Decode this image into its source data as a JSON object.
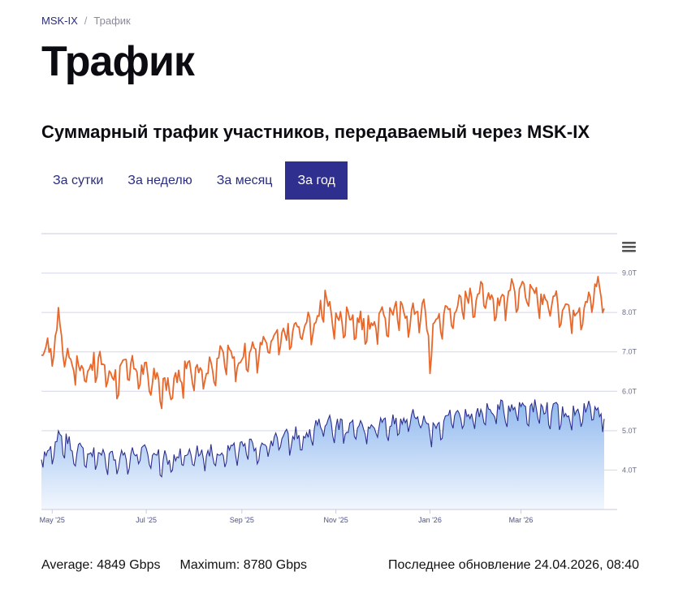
{
  "breadcrumb": {
    "home": "MSK-IX",
    "separator": "/",
    "current": "Трафик"
  },
  "page_title": "Трафик",
  "section_title": "Суммарный трафик участников, передаваемый через MSK-IX",
  "tabs": [
    {
      "label": "За сутки",
      "active": false
    },
    {
      "label": "За неделю",
      "active": false
    },
    {
      "label": "За месяц",
      "active": false
    },
    {
      "label": "За год",
      "active": true
    }
  ],
  "menu_icon": "hamburger-menu-icon",
  "stats": {
    "average": "Average: 4849 Gbps",
    "maximum": "Maximum: 8780 Gbps",
    "updated": "Последнее обновление 24.04.2026, 08:40"
  },
  "colors": {
    "accent": "#2e2f8e",
    "max_line": "#e8672a",
    "avg_line": "#2e2f8e",
    "area_top": "#8fb8ee",
    "area_bottom": "#eef4fd"
  },
  "chart_data": {
    "type": "line",
    "x_range": [
      "2025-04-24",
      "2026-04-24"
    ],
    "x_ticks": [
      {
        "date": "2025-05-01",
        "label": "May '25"
      },
      {
        "date": "2025-07-01",
        "label": "Jul '25"
      },
      {
        "date": "2025-09-01",
        "label": "Sep '25"
      },
      {
        "date": "2025-11-01",
        "label": "Nov '25"
      },
      {
        "date": "2026-01-01",
        "label": "Jan '26"
      },
      {
        "date": "2026-03-01",
        "label": "Mar '26"
      }
    ],
    "y_ticks": [
      {
        "value": 4,
        "label": "4.0T"
      },
      {
        "value": 5,
        "label": "5.0T"
      },
      {
        "value": 6,
        "label": "6.0T"
      },
      {
        "value": 7,
        "label": "7.0T"
      },
      {
        "value": 8,
        "label": "8.0T"
      },
      {
        "value": 9,
        "label": "9.0T"
      }
    ],
    "ylim": [
      3,
      10
    ],
    "grid": true,
    "series": [
      {
        "style": "line",
        "color": "#e8672a",
        "points": [
          [
            "2025-04-24",
            7.1
          ],
          [
            "2025-05-01",
            7.0
          ],
          [
            "2025-05-05",
            7.8
          ],
          [
            "2025-05-10",
            6.9
          ],
          [
            "2025-05-20",
            6.5
          ],
          [
            "2025-06-01",
            6.7
          ],
          [
            "2025-06-10",
            6.3
          ],
          [
            "2025-06-20",
            6.6
          ],
          [
            "2025-07-01",
            6.4
          ],
          [
            "2025-07-08",
            6.2
          ],
          [
            "2025-07-15",
            6.0
          ],
          [
            "2025-07-25",
            6.4
          ],
          [
            "2025-08-01",
            6.6
          ],
          [
            "2025-08-10",
            6.5
          ],
          [
            "2025-08-20",
            6.9
          ],
          [
            "2025-08-30",
            6.8
          ],
          [
            "2025-09-10",
            7.0
          ],
          [
            "2025-09-20",
            7.2
          ],
          [
            "2025-10-01",
            7.4
          ],
          [
            "2025-10-10",
            7.6
          ],
          [
            "2025-10-20",
            7.8
          ],
          [
            "2025-10-26",
            8.3
          ],
          [
            "2025-11-01",
            7.7
          ],
          [
            "2025-11-10",
            7.9
          ],
          [
            "2025-11-20",
            7.6
          ],
          [
            "2025-12-01",
            7.8
          ],
          [
            "2025-12-10",
            8.0
          ],
          [
            "2025-12-20",
            7.9
          ],
          [
            "2025-12-28",
            8.1
          ],
          [
            "2026-01-01",
            7.0
          ],
          [
            "2026-01-05",
            7.8
          ],
          [
            "2026-01-15",
            8.0
          ],
          [
            "2026-01-25",
            8.3
          ],
          [
            "2026-02-05",
            8.5
          ],
          [
            "2026-02-15",
            8.2
          ],
          [
            "2026-02-25",
            8.6
          ],
          [
            "2026-03-05",
            8.4
          ],
          [
            "2026-03-15",
            8.3
          ],
          [
            "2026-03-25",
            8.2
          ],
          [
            "2026-04-05",
            8.0
          ],
          [
            "2026-04-15",
            8.3
          ],
          [
            "2026-04-20",
            8.7
          ],
          [
            "2026-04-24",
            8.1
          ]
        ]
      },
      {
        "style": "area",
        "color": "#2e2f8e",
        "points": [
          [
            "2025-04-24",
            4.4
          ],
          [
            "2025-05-01",
            4.4
          ],
          [
            "2025-05-05",
            4.9
          ],
          [
            "2025-05-15",
            4.5
          ],
          [
            "2025-06-01",
            4.3
          ],
          [
            "2025-06-15",
            4.3
          ],
          [
            "2025-07-01",
            4.4
          ],
          [
            "2025-07-15",
            4.2
          ],
          [
            "2025-08-01",
            4.4
          ],
          [
            "2025-08-15",
            4.4
          ],
          [
            "2025-09-01",
            4.5
          ],
          [
            "2025-09-15",
            4.6
          ],
          [
            "2025-10-01",
            4.8
          ],
          [
            "2025-10-15",
            4.9
          ],
          [
            "2025-10-26",
            5.2
          ],
          [
            "2025-11-10",
            5.0
          ],
          [
            "2025-11-25",
            5.1
          ],
          [
            "2025-12-10",
            5.2
          ],
          [
            "2025-12-25",
            5.3
          ],
          [
            "2026-01-01",
            5.0
          ],
          [
            "2026-01-15",
            5.3
          ],
          [
            "2026-02-01",
            5.4
          ],
          [
            "2026-02-15",
            5.5
          ],
          [
            "2026-03-01",
            5.6
          ],
          [
            "2026-03-15",
            5.5
          ],
          [
            "2026-04-01",
            5.4
          ],
          [
            "2026-04-15",
            5.5
          ],
          [
            "2026-04-24",
            5.3
          ]
        ]
      }
    ]
  }
}
